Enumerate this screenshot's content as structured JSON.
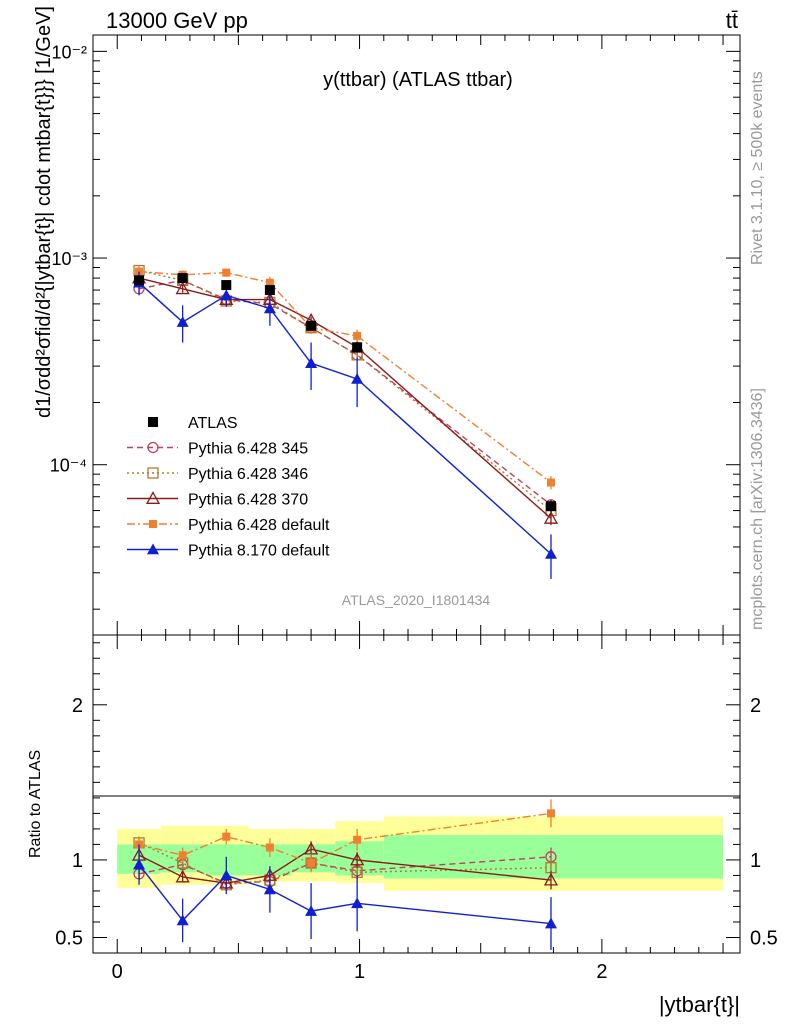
{
  "header": {
    "left_title": "13000 GeV pp",
    "right_title": "tt̄"
  },
  "plot_title": "y(ttbar) (ATLAS ttbar)",
  "analysis_id": "ATLAS_2020_I1801434",
  "side_labels": {
    "rivet": "Rivet 3.1.10, ≥ 500k events",
    "mcplots": "mcplots.cern.ch [arXiv:1306.3436]"
  },
  "chart_data": [
    {
      "type": "scatter",
      "ylabel": "d1/σdd²σfid/d²{|ytbar{t}| cdot mtbar{t}}} [1/GeV]",
      "xlabel": "|ytbar{t}|",
      "yscale": "log",
      "ylim": [
        1.5e-05,
        0.012
      ],
      "xlim": [
        -0.1,
        2.57
      ],
      "x_ticks": [
        "0",
        "1",
        "2"
      ],
      "y_ticks": [
        "10⁻⁴",
        "10⁻³",
        "10⁻²"
      ],
      "legend_position": "left-middle",
      "series": [
        {
          "name": "ATLAS",
          "color": "#000000",
          "marker": "square-filled",
          "line": "none",
          "x": [
            0.09,
            0.27,
            0.45,
            0.63,
            0.8,
            0.99,
            1.79
          ],
          "y": [
            0.00078,
            0.0008,
            0.00074,
            0.0007,
            0.00047,
            0.00037,
            6.3e-05
          ],
          "yerr": [
            4e-05,
            3e-05,
            3e-05,
            3e-05,
            2e-05,
            2e-05,
            4e-06
          ]
        },
        {
          "name": "Pythia 6.428 345",
          "color": "#c04060",
          "marker": "circle-open",
          "line": "dashed",
          "x": [
            0.09,
            0.27,
            0.45,
            0.63,
            0.8,
            0.99,
            1.79
          ],
          "y": [
            0.00071,
            0.00078,
            0.00063,
            0.0006,
            0.00046,
            0.00034,
            6.4e-05
          ],
          "yerr": [
            4e-05,
            3e-05,
            3e-05,
            3e-05,
            2e-05,
            2e-05,
            4e-06
          ]
        },
        {
          "name": "Pythia 6.428 346",
          "color": "#b07830",
          "marker": "square-open",
          "line": "dotted",
          "x": [
            0.09,
            0.27,
            0.45,
            0.63,
            0.8,
            0.99,
            1.79
          ],
          "y": [
            0.00087,
            0.00078,
            0.00062,
            0.00061,
            0.00046,
            0.00034,
            6e-05
          ],
          "yerr": [
            4e-05,
            3e-05,
            3e-05,
            3e-05,
            2e-05,
            2e-05,
            4e-06
          ]
        },
        {
          "name": "Pythia 6.428 370",
          "color": "#8b1a1a",
          "marker": "triangle-open",
          "line": "solid",
          "x": [
            0.09,
            0.27,
            0.45,
            0.63,
            0.8,
            0.99,
            1.79
          ],
          "y": [
            0.0008,
            0.00071,
            0.00063,
            0.00063,
            0.0005,
            0.00037,
            5.5e-05
          ],
          "yerr": [
            4e-05,
            3e-05,
            3e-05,
            3e-05,
            2e-05,
            2e-05,
            4e-06
          ]
        },
        {
          "name": "Pythia 6.428 default",
          "color": "#f08030",
          "marker": "square-filled-small",
          "line": "dashdot",
          "x": [
            0.09,
            0.27,
            0.45,
            0.63,
            0.8,
            0.99,
            1.79
          ],
          "y": [
            0.00086,
            0.00083,
            0.00085,
            0.00076,
            0.00046,
            0.00042,
            8.2e-05
          ],
          "yerr": [
            5e-05,
            4e-05,
            4e-05,
            5e-05,
            3e-05,
            3e-05,
            6e-06
          ]
        },
        {
          "name": "Pythia 8.170 default",
          "color": "#1020d0",
          "marker": "triangle-filled",
          "line": "solid",
          "x": [
            0.09,
            0.27,
            0.45,
            0.63,
            0.8,
            0.99,
            1.79
          ],
          "y": [
            0.00076,
            0.00049,
            0.00066,
            0.00057,
            0.00031,
            0.00026,
            3.7e-05
          ],
          "yerr": [
            0.0001,
            0.0001,
            8e-05,
            0.0001,
            8e-05,
            7e-05,
            9e-06
          ]
        }
      ]
    },
    {
      "type": "scatter",
      "ylabel": "Ratio to ATLAS",
      "ylim": [
        0.4,
        2.45
      ],
      "xlim": [
        -0.1,
        2.57
      ],
      "y_ticks": [
        "0.5",
        "1",
        "2"
      ],
      "uncertainty_bands": {
        "edges": [
          0.0,
          0.18,
          0.36,
          0.54,
          0.72,
          0.9,
          1.1,
          2.5
        ],
        "inner_lo": [
          0.91,
          0.92,
          0.9,
          0.9,
          0.92,
          0.9,
          0.88,
          0.86
        ],
        "inner_hi": [
          1.1,
          1.1,
          1.1,
          1.1,
          1.1,
          1.12,
          1.16,
          1.15
        ],
        "outer_lo": [
          0.82,
          0.84,
          0.84,
          0.86,
          0.86,
          0.85,
          0.8,
          0.72
        ],
        "outer_hi": [
          1.2,
          1.22,
          1.22,
          1.2,
          1.2,
          1.25,
          1.28,
          1.27
        ],
        "inner_color": "#99ff99",
        "outer_color": "#ffff99"
      },
      "series": [
        {
          "name": "Pythia 6.428 345",
          "x": [
            0.09,
            0.27,
            0.45,
            0.63,
            0.8,
            0.99,
            1.79
          ],
          "y": [
            0.91,
            0.97,
            0.85,
            0.86,
            0.98,
            0.93,
            1.02
          ],
          "yerr": [
            0.04,
            0.03,
            0.04,
            0.04,
            0.05,
            0.05,
            0.06
          ]
        },
        {
          "name": "Pythia 6.428 346",
          "x": [
            0.09,
            0.27,
            0.45,
            0.63,
            0.8,
            0.99,
            1.79
          ],
          "y": [
            1.11,
            0.98,
            0.84,
            0.87,
            0.98,
            0.92,
            0.95
          ],
          "yerr": [
            0.04,
            0.03,
            0.04,
            0.04,
            0.05,
            0.05,
            0.06
          ]
        },
        {
          "name": "Pythia 6.428 370",
          "x": [
            0.09,
            0.27,
            0.45,
            0.63,
            0.8,
            0.99,
            1.79
          ],
          "y": [
            1.03,
            0.89,
            0.85,
            0.9,
            1.07,
            1.0,
            0.87
          ],
          "yerr": [
            0.04,
            0.03,
            0.04,
            0.04,
            0.05,
            0.05,
            0.06
          ]
        },
        {
          "name": "Pythia 6.428 default",
          "x": [
            0.09,
            0.27,
            0.45,
            0.63,
            0.8,
            0.99,
            1.79
          ],
          "y": [
            1.1,
            1.03,
            1.15,
            1.08,
            0.98,
            1.13,
            1.3
          ],
          "yerr": [
            0.05,
            0.05,
            0.05,
            0.06,
            0.06,
            0.07,
            0.09
          ]
        },
        {
          "name": "Pythia 8.170 default",
          "x": [
            0.09,
            0.27,
            0.45,
            0.63,
            0.8,
            0.99,
            1.79
          ],
          "y": [
            0.97,
            0.61,
            0.9,
            0.81,
            0.67,
            0.72,
            0.59
          ],
          "yerr": [
            0.13,
            0.14,
            0.12,
            0.15,
            0.18,
            0.18,
            0.17
          ]
        }
      ]
    }
  ]
}
